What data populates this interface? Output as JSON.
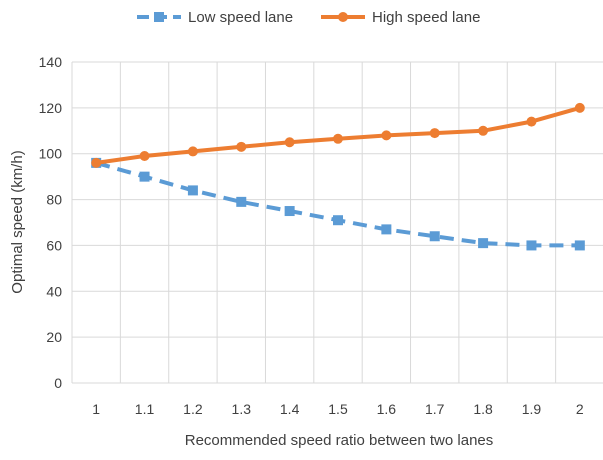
{
  "chart_data": {
    "type": "line",
    "title": "",
    "xlabel": "Recommended speed ratio between two lanes",
    "ylabel": "Optimal speed (km/h)",
    "x": [
      1,
      1.1,
      1.2,
      1.3,
      1.4,
      1.5,
      1.6,
      1.7,
      1.8,
      1.9,
      2
    ],
    "x_tick_labels": [
      "1",
      "1.1",
      "1.2",
      "1.3",
      "1.4",
      "1.5",
      "1.6",
      "1.7",
      "1.8",
      "1.9",
      "2"
    ],
    "y_ticks": [
      0,
      20,
      40,
      60,
      80,
      100,
      120,
      140
    ],
    "y_tick_labels": [
      "0",
      "20",
      "40",
      "60",
      "80",
      "100",
      "120",
      "140"
    ],
    "ylim": [
      0,
      140
    ],
    "grid": true,
    "legend_position": "top",
    "series": [
      {
        "name": "Low speed lane",
        "color": "#5B9BD5",
        "line_style": "dashed",
        "marker": "square",
        "values": [
          96,
          90,
          84,
          79,
          75,
          71,
          67,
          64,
          61,
          60,
          60
        ]
      },
      {
        "name": "High speed lane",
        "color": "#ED7D31",
        "line_style": "solid",
        "marker": "circle",
        "values": [
          96,
          99,
          101,
          103,
          105,
          106.5,
          108,
          109,
          110,
          114,
          120
        ]
      }
    ]
  }
}
